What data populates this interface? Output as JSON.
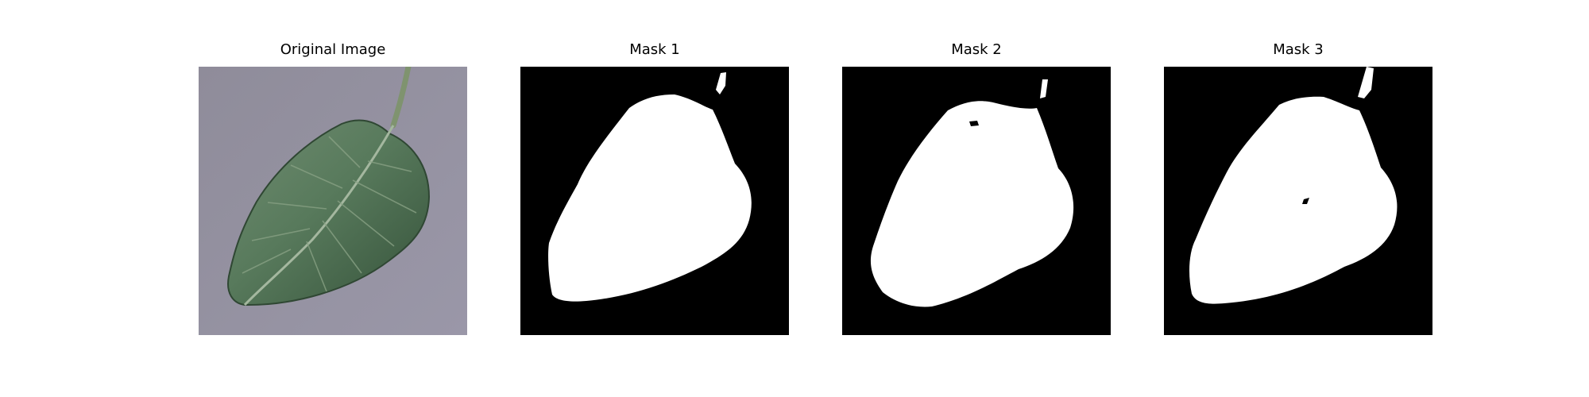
{
  "figure": {
    "panels": [
      {
        "title": "Original Image",
        "kind": "photo"
      },
      {
        "title": "Mask 1",
        "kind": "mask"
      },
      {
        "title": "Mask 2",
        "kind": "mask"
      },
      {
        "title": "Mask 3",
        "kind": "mask"
      }
    ]
  },
  "colors": {
    "background": "#ffffff",
    "mask_background": "#000000",
    "mask_foreground": "#ffffff",
    "photo_background": "#8f8c9a",
    "leaf_dark": "#3f5b45",
    "leaf_mid": "#5f7f62",
    "leaf_light": "#9bb59a"
  }
}
